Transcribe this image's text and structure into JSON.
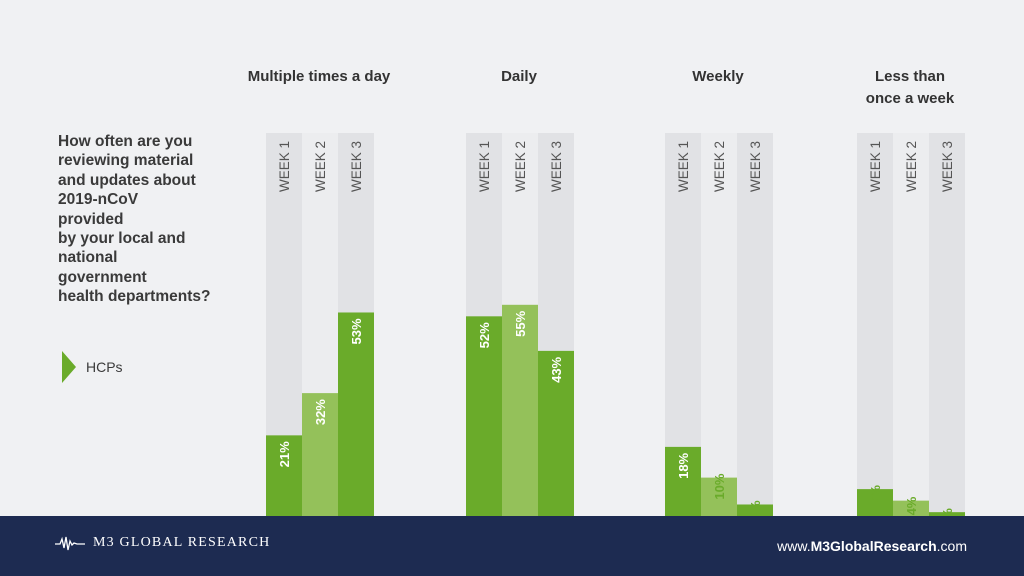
{
  "question": [
    "How often are you",
    "reviewing material",
    "and updates about",
    "2019-nCoV",
    "provided",
    "by your local and",
    "national",
    "government",
    "health departments?"
  ],
  "legend": {
    "label": "HCPs"
  },
  "colors": {
    "background": "#f0f1f3",
    "column_dark": "#e1e2e5",
    "column_light": "#ecedef",
    "week1": "#6aab2a",
    "week2": "#94c15a",
    "week3": "#6aab2a",
    "label_inside": "#ffffff",
    "label_outside": "#6aab2a",
    "footer": "#1d2b51"
  },
  "chart_data": {
    "type": "bar",
    "categories": [
      [
        "Multiple times a day"
      ],
      [
        "Daily"
      ],
      [
        "Weekly"
      ],
      [
        "Less than",
        "once a week"
      ]
    ],
    "series": [
      {
        "name": "WEEK 1",
        "values": [
          21,
          52,
          18,
          7
        ]
      },
      {
        "name": "WEEK 2",
        "values": [
          32,
          55,
          10,
          4
        ]
      },
      {
        "name": "WEEK 3",
        "values": [
          53,
          43,
          3,
          1
        ]
      }
    ],
    "unit": "%",
    "ylim": [
      0,
      100
    ]
  },
  "footer": {
    "logo": "M3 GLOBAL RESEARCH",
    "url_prefix": "www.",
    "url_brand": "M3GlobalResearch",
    "url_suffix": ".com"
  }
}
